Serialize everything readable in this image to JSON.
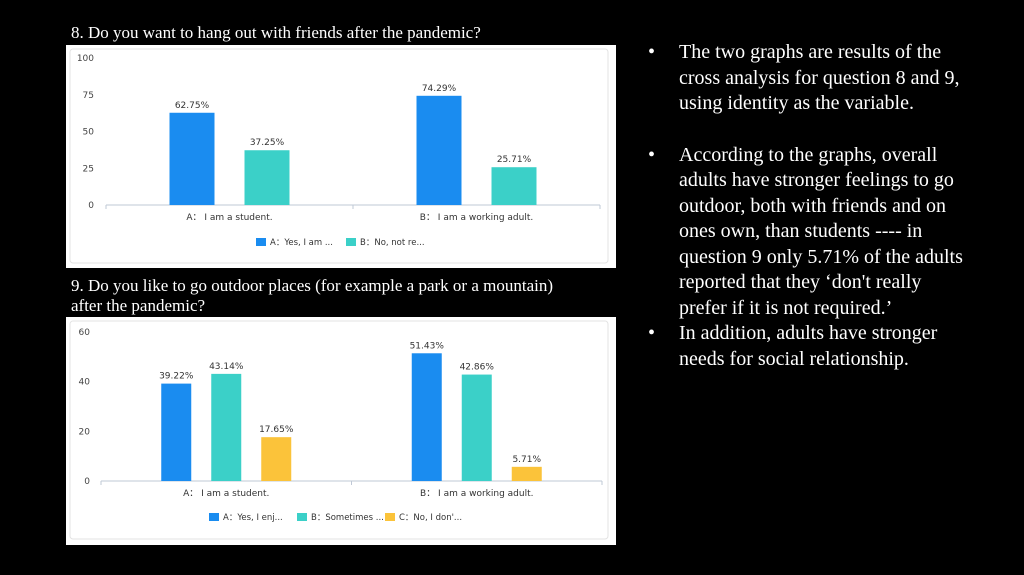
{
  "q8": {
    "title": "8. Do you want to hang out with friends after the pandemic?"
  },
  "q9": {
    "title": "9. Do you like to go outdoor places (for example a park or a mountain) after the pandemic?"
  },
  "bullets": [
    "The two graphs are results of the cross analysis for question 8 and 9, using identity as the variable.",
    "According to the graphs, overall adults have stronger feelings to go outdoor, both with friends and on ones own, than students ---- in question 9 only 5.71% of the adults reported that they ‘don't really prefer if it is not required.’",
    "In addition, adults have stronger needs for social relationship."
  ],
  "bullet_glyph": "•",
  "chart_data": [
    {
      "type": "bar",
      "categories": [
        "A： I am a student.",
        "B： I am a working adult."
      ],
      "series": [
        {
          "name": "A：Yes, I am ...",
          "values": [
            62.75,
            74.29
          ],
          "labels": [
            "62.75%",
            "74.29%"
          ],
          "color": "#1a8cf0"
        },
        {
          "name": "B：No, not re...",
          "values": [
            37.25,
            25.71
          ],
          "labels": [
            "37.25%",
            "25.71%"
          ],
          "color": "#3bd0c8"
        }
      ],
      "ylim": [
        0,
        100
      ],
      "yticks": [
        "0",
        "25",
        "50",
        "75",
        "100"
      ],
      "ytick_values": [
        0,
        25,
        50,
        75,
        100
      ],
      "legend": "bottom",
      "grid": false
    },
    {
      "type": "bar",
      "categories": [
        "A： I am a student.",
        "B： I am a working adult."
      ],
      "series": [
        {
          "name": "A：Yes, I enj...",
          "values": [
            39.22,
            51.43
          ],
          "labels": [
            "39.22%",
            "51.43%"
          ],
          "color": "#1a8cf0"
        },
        {
          "name": "B：Sometimes ...",
          "values": [
            43.14,
            42.86
          ],
          "labels": [
            "43.14%",
            "42.86%"
          ],
          "color": "#3bd0c8"
        },
        {
          "name": "C：No, I don'...",
          "values": [
            17.65,
            5.71
          ],
          "labels": [
            "17.65%",
            "5.71%"
          ],
          "color": "#fbc33a"
        }
      ],
      "ylim": [
        0,
        60
      ],
      "yticks": [
        "0",
        "20",
        "40",
        "60"
      ],
      "ytick_values": [
        0,
        20,
        40,
        60
      ],
      "legend": "bottom",
      "grid": false
    }
  ]
}
